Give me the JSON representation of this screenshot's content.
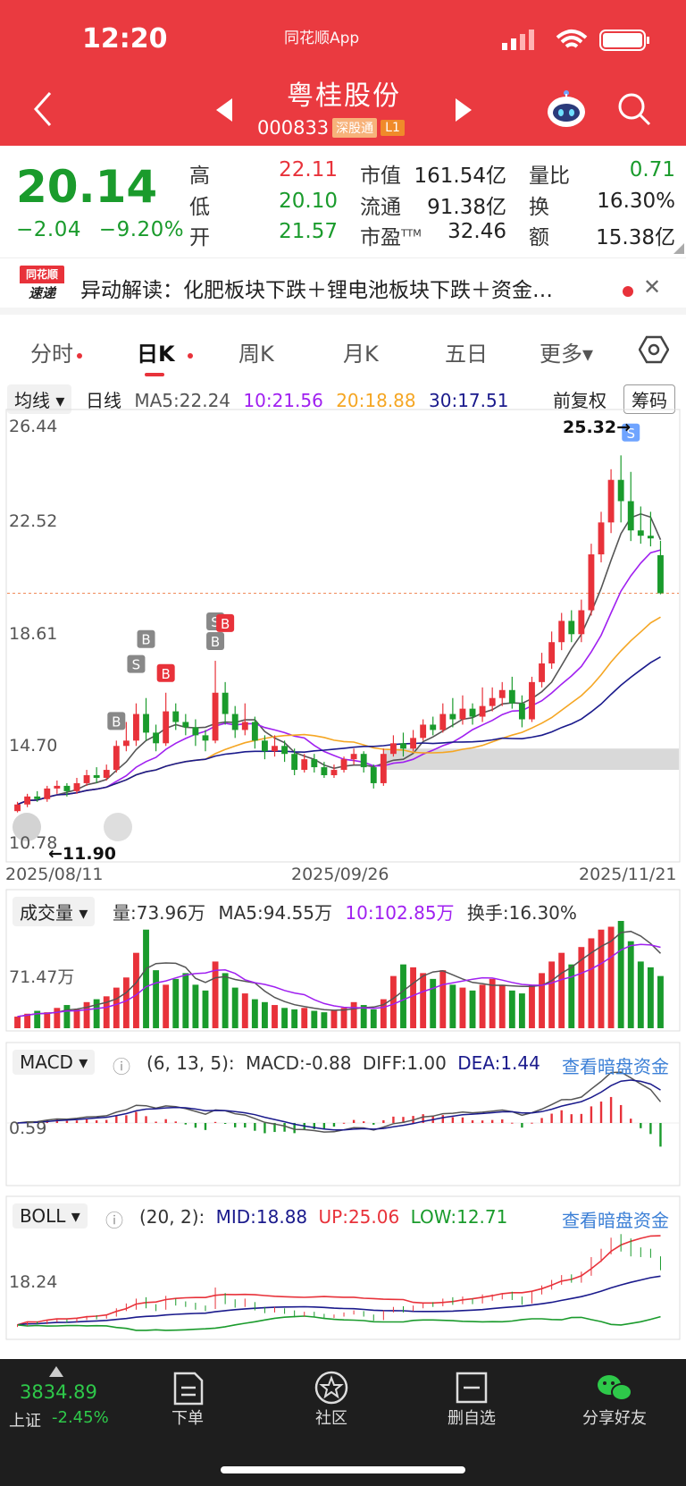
{
  "status": {
    "time": "12:20",
    "app": "同花顺App"
  },
  "header": {
    "name": "粤桂股份",
    "code": "000833",
    "tag_sgt": "深股通",
    "tag_l1": "L1"
  },
  "quote": {
    "price": "20.14",
    "change": "−2.04",
    "change_pct": "−9.20%",
    "rows": [
      {
        "l1": "高",
        "v1": "22.11",
        "l2": "市值",
        "v2": "161.54亿",
        "l3": "量比",
        "v3": "0.71"
      },
      {
        "l1": "低",
        "v1": "20.10",
        "l2": "流通",
        "v2": "91.38亿",
        "l3": "换",
        "v3": "16.30%"
      },
      {
        "l1": "开",
        "v1": "21.57",
        "l2": "市盈",
        "v2": "32.46",
        "l3": "额",
        "v3": "15.38亿"
      }
    ],
    "pe_sup": "TTM"
  },
  "news": {
    "logo_top": "同花顺",
    "logo_bottom": "速递",
    "text": "异动解读：化肥板块下跌＋锂电池板块下跌＋资金…",
    "close": "✕"
  },
  "tabs": [
    "分时",
    "日K",
    "周K",
    "月K",
    "五日",
    "更多▾"
  ],
  "kline": {
    "ma_dropdown": "均线 ▾",
    "period": "日线",
    "ma5": "MA5:22.24",
    "ma10": "10:21.56",
    "ma20": "20:18.88",
    "ma30": "30:17.51",
    "fq": "前复权",
    "chips": "筹码",
    "y_labels": [
      "26.44",
      "22.52",
      "18.61",
      "14.70",
      "10.78"
    ],
    "high_note": "25.32→",
    "low_note": "←11.90",
    "dates": [
      "2025/08/11",
      "2025/09/26",
      "2025/11/21"
    ]
  },
  "volume": {
    "dropdown": "成交量 ▾",
    "vol": "量:73.96万",
    "ma5": "MA5:94.55万",
    "ma10": "10:102.85万",
    "turnover": "换手:16.30%",
    "y_label": "71.47万"
  },
  "macd": {
    "dropdown": "MACD ▾",
    "params": "(6, 13, 5):",
    "macd": "MACD:-0.88",
    "diff": "DIFF:1.00",
    "dea": "DEA:1.44",
    "link": "查看暗盘资金",
    "y_label": "0.59"
  },
  "boll": {
    "dropdown": "BOLL ▾",
    "params": "(20, 2):",
    "mid": "MID:18.88",
    "up": "UP:25.06",
    "low": "LOW:12.71",
    "link": "查看暗盘资金",
    "y_label": "18.24"
  },
  "bottom": {
    "index_val": "3834.89",
    "index_name": "上证",
    "index_chg": "-2.45%",
    "nav": [
      "下单",
      "社区",
      "删自选",
      "分享好友"
    ]
  },
  "colors": {
    "up": "#e8323a",
    "down": "#1a9b2c",
    "brand": "#ea3a40",
    "ma5": "#555555",
    "ma10": "#a020f0",
    "ma20": "#f5a623",
    "ma30": "#1a1a8c"
  },
  "chart_data": {
    "type": "candlestick",
    "title": "日K",
    "x_start": "2025/08/11",
    "x_mid": "2025/09/26",
    "x_end": "2025/11/21",
    "ylim": [
      10.78,
      26.44
    ],
    "candles": [
      [
        11.95,
        12.2,
        11.9,
        12.3
      ],
      [
        12.2,
        12.5,
        12.1,
        12.6
      ],
      [
        12.5,
        12.4,
        12.3,
        12.7
      ],
      [
        12.4,
        12.8,
        12.3,
        12.9
      ],
      [
        12.8,
        12.9,
        12.6,
        13.1
      ],
      [
        12.9,
        12.7,
        12.5,
        13.0
      ],
      [
        12.7,
        13.0,
        12.6,
        13.2
      ],
      [
        13.0,
        13.3,
        12.9,
        13.5
      ],
      [
        13.3,
        13.2,
        13.0,
        13.6
      ],
      [
        13.2,
        13.5,
        13.1,
        13.7
      ],
      [
        13.5,
        14.4,
        13.4,
        14.6
      ],
      [
        14.4,
        14.6,
        14.2,
        15.3
      ],
      [
        14.6,
        15.6,
        14.4,
        16.0
      ],
      [
        15.6,
        14.9,
        14.6,
        16.2
      ],
      [
        14.9,
        14.5,
        14.2,
        15.2
      ],
      [
        14.5,
        15.7,
        14.4,
        16.4
      ],
      [
        15.7,
        15.3,
        15.0,
        16.0
      ],
      [
        15.3,
        15.1,
        14.8,
        15.6
      ],
      [
        15.1,
        14.8,
        14.4,
        15.4
      ],
      [
        14.8,
        14.6,
        14.2,
        15.0
      ],
      [
        14.6,
        16.4,
        14.5,
        17.6
      ],
      [
        16.4,
        15.6,
        15.2,
        16.8
      ],
      [
        15.6,
        15.0,
        14.7,
        15.9
      ],
      [
        15.0,
        15.3,
        14.8,
        16.0
      ],
      [
        15.3,
        14.6,
        14.3,
        15.5
      ],
      [
        14.6,
        14.2,
        13.9,
        14.8
      ],
      [
        14.2,
        14.4,
        14.0,
        14.8
      ],
      [
        14.4,
        14.1,
        13.8,
        14.6
      ],
      [
        14.1,
        13.5,
        13.3,
        14.3
      ],
      [
        13.5,
        13.9,
        13.4,
        14.1
      ],
      [
        13.9,
        13.6,
        13.4,
        14.1
      ],
      [
        13.6,
        13.3,
        13.2,
        13.8
      ],
      [
        13.3,
        13.5,
        13.2,
        13.7
      ],
      [
        13.5,
        13.9,
        13.4,
        14.0
      ],
      [
        13.9,
        14.1,
        13.7,
        14.3
      ],
      [
        14.1,
        13.6,
        13.4,
        14.2
      ],
      [
        13.6,
        13.0,
        12.8,
        13.7
      ],
      [
        13.0,
        14.1,
        12.9,
        14.3
      ],
      [
        14.1,
        14.5,
        14.0,
        14.8
      ],
      [
        14.5,
        14.3,
        14.0,
        14.9
      ],
      [
        14.3,
        14.7,
        14.2,
        15.0
      ],
      [
        14.7,
        15.2,
        14.6,
        15.4
      ],
      [
        15.2,
        15.0,
        14.8,
        15.5
      ],
      [
        15.0,
        15.6,
        14.9,
        16.0
      ],
      [
        15.6,
        15.4,
        15.1,
        16.2
      ],
      [
        15.4,
        15.8,
        15.2,
        16.3
      ],
      [
        15.8,
        15.5,
        15.2,
        16.0
      ],
      [
        15.5,
        15.9,
        15.3,
        16.6
      ],
      [
        15.9,
        16.2,
        15.7,
        16.6
      ],
      [
        16.2,
        16.5,
        15.9,
        16.8
      ],
      [
        16.5,
        16.0,
        15.8,
        17.0
      ],
      [
        16.0,
        15.4,
        15.1,
        16.3
      ],
      [
        15.4,
        16.8,
        15.3,
        17.0
      ],
      [
        16.8,
        17.5,
        16.6,
        17.9
      ],
      [
        17.5,
        18.3,
        17.3,
        18.7
      ],
      [
        18.3,
        19.1,
        18.0,
        19.4
      ],
      [
        19.1,
        18.6,
        18.3,
        19.5
      ],
      [
        18.6,
        19.5,
        18.3,
        19.9
      ],
      [
        19.5,
        21.6,
        19.3,
        22.0
      ],
      [
        21.6,
        22.8,
        21.3,
        23.2
      ],
      [
        22.8,
        24.4,
        22.4,
        24.8
      ],
      [
        24.4,
        23.6,
        22.8,
        25.32
      ],
      [
        23.6,
        22.5,
        22.1,
        24.7
      ],
      [
        22.5,
        22.3,
        22.0,
        23.4
      ],
      [
        22.3,
        22.2,
        21.9,
        23.2
      ],
      [
        21.57,
        20.14,
        20.1,
        22.11
      ]
    ],
    "volumes": [
      8,
      10,
      12,
      11,
      14,
      16,
      13,
      18,
      20,
      22,
      28,
      35,
      52,
      68,
      40,
      30,
      34,
      38,
      30,
      26,
      46,
      38,
      28,
      24,
      20,
      18,
      16,
      14,
      13,
      14,
      12,
      11,
      12,
      14,
      18,
      16,
      13,
      20,
      36,
      44,
      42,
      38,
      34,
      40,
      30,
      28,
      26,
      30,
      34,
      30,
      26,
      24,
      30,
      38,
      46,
      52,
      44,
      56,
      62,
      68,
      70,
      74,
      60,
      46,
      42,
      36
    ],
    "boll": {
      "mid": 18.88,
      "up": 25.06,
      "low": 12.71
    }
  }
}
